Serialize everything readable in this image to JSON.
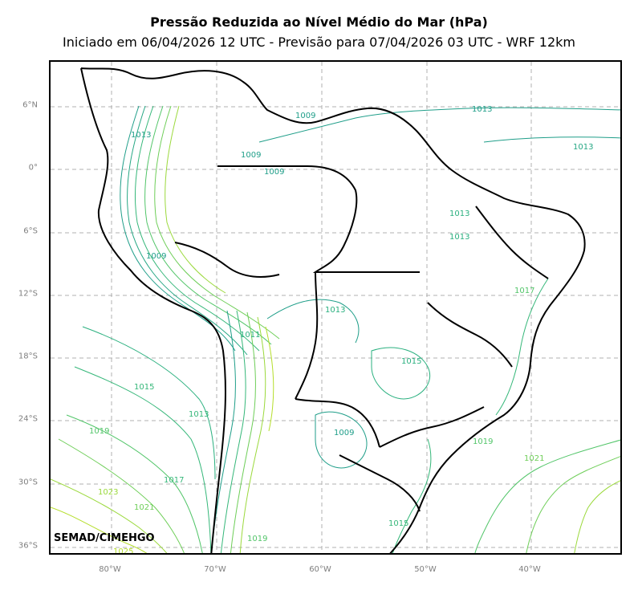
{
  "header": {
    "title": "Pressão Reduzida ao Nível Médio do Mar (hPa)",
    "subtitle": "Iniciado em 06/04/2026 12 UTC - Previsão para 07/04/2026 03 UTC - WRF 12km"
  },
  "credit": "SEMAD/CIMEHGO",
  "axes": {
    "lat_labels": [
      "6°N",
      "0°",
      "6°S",
      "12°S",
      "18°S",
      "24°S",
      "30°S",
      "36°S"
    ],
    "lon_labels": [
      "80°W",
      "70°W",
      "60°W",
      "50°W",
      "40°W"
    ],
    "grid": true,
    "grid_style": "dashed-gray"
  },
  "isobar_labels": [
    "1013",
    "1013",
    "1009",
    "1009",
    "1009",
    "1013",
    "1013",
    "1013",
    "1009",
    "1013",
    "1017",
    "1011",
    "1015",
    "1015",
    "1013",
    "1019",
    "1009",
    "1019",
    "1021",
    "1017",
    "1023",
    "1021",
    "1015",
    "1019",
    "1025"
  ],
  "colors": {
    "low_pressure": "#1f9e89",
    "mid_pressure": "#35b779",
    "mid_high_pressure": "#6ece58",
    "high_pressure": "#b5de2b",
    "borders": "#000000",
    "label_axis": "#7f7f7f"
  }
}
